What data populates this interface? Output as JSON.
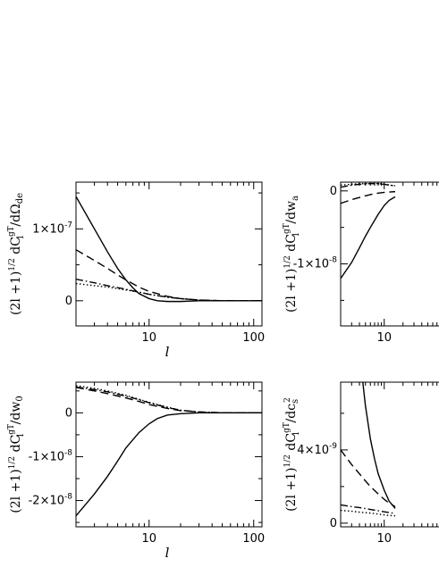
{
  "chart_data": [
    {
      "type": "line",
      "panel": "top-left",
      "title": "",
      "xlabel": "l",
      "ylabel": {
        "prefix": "(2l +1)",
        "prefix_sup": "1/2",
        "mid": " dC",
        "mid_sup": "gT",
        "mid_sub": "l",
        "suffix": " /dΩ",
        "suffix_sub": "de"
      },
      "xscale": "log",
      "xlim": [
        2,
        120
      ],
      "ylim": [
        -3.5e-08,
        1.65e-07
      ],
      "xticks": [
        {
          "v": 10,
          "label": "10"
        },
        {
          "v": 100,
          "label": "100"
        }
      ],
      "yticks": [
        {
          "v": 0,
          "label": "0"
        },
        {
          "v": 1e-07,
          "label": "1×10",
          "exp": "-7"
        }
      ],
      "series": [
        {
          "style": "solid",
          "x": [
            2,
            3,
            4,
            5,
            6,
            7,
            8,
            10,
            12,
            15,
            20,
            30,
            50,
            120
          ],
          "y": [
            1.45e-07,
            1e-07,
            6.8e-08,
            4.5e-08,
            2.9e-08,
            1.8e-08,
            1e-08,
            3e-09,
            0,
            -1e-09,
            -1e-09,
            0,
            0,
            0
          ]
        },
        {
          "style": "dashed",
          "x": [
            2,
            3,
            4,
            5,
            6,
            8,
            10,
            15,
            20,
            30,
            50,
            120
          ],
          "y": [
            7.1e-08,
            5.6e-08,
            4.5e-08,
            3.6e-08,
            2.9e-08,
            1.9e-08,
            1.3e-08,
            6e-09,
            3e-09,
            1e-09,
            0,
            0
          ]
        },
        {
          "style": "dashdot",
          "x": [
            2,
            3,
            4,
            6,
            8,
            10,
            15,
            20,
            30,
            50,
            120
          ],
          "y": [
            3e-08,
            2.5e-08,
            2.1e-08,
            1.6e-08,
            1.2e-08,
            9e-09,
            5e-09,
            3e-09,
            1e-09,
            0,
            0
          ]
        },
        {
          "style": "dotted",
          "x": [
            2,
            3,
            4,
            6,
            8,
            10,
            15,
            20,
            30,
            50,
            120
          ],
          "y": [
            2.4e-08,
            2.1e-08,
            1.9e-08,
            1.5e-08,
            1.2e-08,
            9e-09,
            5e-09,
            3e-09,
            1e-09,
            0,
            0
          ]
        }
      ]
    },
    {
      "type": "line",
      "panel": "top-right",
      "title": "",
      "xlabel": "",
      "ylabel": {
        "prefix": "(2l +1)",
        "prefix_sup": "1/2",
        "mid": " dC",
        "mid_sup": "gT",
        "mid_sub": "l",
        "suffix": " /dw",
        "suffix_sub": "a"
      },
      "xscale": "log",
      "xlim": [
        2,
        120
      ],
      "ylim": [
        -1.85e-08,
        1.2e-09
      ],
      "xticks": [
        {
          "v": 10,
          "label": "10"
        }
      ],
      "yticks": [
        {
          "v": 0,
          "label": "0"
        },
        {
          "v": -1e-08,
          "label": "-1×10",
          "exp": "-8"
        }
      ],
      "series": [
        {
          "style": "solid",
          "x": [
            2,
            3,
            4,
            5,
            6,
            8,
            10,
            12,
            15
          ],
          "y": [
            -1.2e-08,
            -9.8e-09,
            -7.8e-09,
            -6.2e-09,
            -5e-09,
            -3.2e-09,
            -2e-09,
            -1.3e-09,
            -8e-10
          ]
        },
        {
          "style": "dashed",
          "x": [
            2,
            3,
            4,
            6,
            8,
            10,
            12,
            15
          ],
          "y": [
            -1.7e-09,
            -1.2e-09,
            -9e-10,
            -5e-10,
            -3e-10,
            -2e-10,
            -1.5e-10,
            -1e-10
          ]
        },
        {
          "style": "dashdot",
          "x": [
            2,
            3,
            4,
            6,
            8,
            10,
            12,
            15
          ],
          "y": [
            5e-10,
            8e-10,
            9e-10,
            1e-09,
            1e-09,
            9e-10,
            8e-10,
            7e-10
          ]
        },
        {
          "style": "dotted",
          "x": [
            2,
            3,
            4,
            6,
            8,
            10,
            12,
            15
          ],
          "y": [
            8e-10,
            9e-10,
            1e-09,
            1e-09,
            1e-09,
            9e-10,
            8e-10,
            7e-10
          ]
        }
      ]
    },
    {
      "type": "line",
      "panel": "bottom-left",
      "title": "",
      "xlabel": "l",
      "ylabel": {
        "prefix": "(2l +1)",
        "prefix_sup": "1/2",
        "mid": " dC",
        "mid_sup": "gT",
        "mid_sub": "l",
        "suffix": " /dw",
        "suffix_sub": "0"
      },
      "xscale": "log",
      "xlim": [
        2,
        120
      ],
      "ylim": [
        -2.6e-08,
        7e-09
      ],
      "xticks": [
        {
          "v": 10,
          "label": "10"
        },
        {
          "v": 100,
          "label": "100"
        }
      ],
      "yticks": [
        {
          "v": 0,
          "label": "0"
        },
        {
          "v": -1e-08,
          "label": "-1×10",
          "exp": "-8"
        },
        {
          "v": -2e-08,
          "label": "-2×10",
          "exp": "-8"
        }
      ],
      "series": [
        {
          "style": "solid",
          "x": [
            2,
            3,
            4,
            5,
            6,
            8,
            10,
            12,
            15,
            20,
            30,
            50,
            120
          ],
          "y": [
            -2.35e-08,
            -1.85e-08,
            -1.45e-08,
            -1.1e-08,
            -8e-09,
            -4.5e-09,
            -2.5e-09,
            -1.3e-09,
            -5e-10,
            -2e-10,
            0,
            0,
            0
          ]
        },
        {
          "style": "dashed",
          "x": [
            2,
            3,
            4,
            6,
            8,
            10,
            15,
            20,
            30,
            50,
            120
          ],
          "y": [
            5.8e-09,
            5e-09,
            4.4e-09,
            3.4e-09,
            2.6e-09,
            1.9e-09,
            1e-09,
            5e-10,
            2e-10,
            0,
            0
          ]
        },
        {
          "style": "dashdot",
          "x": [
            2,
            3,
            4,
            6,
            8,
            10,
            15,
            20,
            30,
            50,
            120
          ],
          "y": [
            5.9e-09,
            5.3e-09,
            4.8e-09,
            3.8e-09,
            3e-09,
            2.3e-09,
            1.2e-09,
            6e-10,
            2e-10,
            0,
            0
          ]
        },
        {
          "style": "dotted",
          "x": [
            2,
            3,
            4,
            6,
            8,
            10,
            15,
            20,
            30,
            50,
            120
          ],
          "y": [
            6.2e-09,
            5.6e-09,
            5e-09,
            4e-09,
            3.1e-09,
            2.4e-09,
            1.3e-09,
            6e-10,
            2e-10,
            0,
            0
          ]
        }
      ]
    },
    {
      "type": "line",
      "panel": "bottom-right",
      "title": "",
      "xlabel": "",
      "ylabel": {
        "prefix": "(2l +1)",
        "prefix_sup": "1/2",
        "mid": " dC",
        "mid_sup": "gT",
        "mid_sub": "l",
        "suffix": " /dc",
        "suffix_sub": "s",
        "suffix_sup": "2"
      },
      "xscale": "log",
      "xlim": [
        2,
        120
      ],
      "ylim": [
        -2e-10,
        7.7e-09
      ],
      "xticks": [
        {
          "v": 10,
          "label": "10"
        }
      ],
      "yticks": [
        {
          "v": 0,
          "label": "0"
        },
        {
          "v": 4e-09,
          "label": "4×10",
          "exp": "-9"
        }
      ],
      "series": [
        {
          "style": "solid",
          "x": [
            4.5,
            5,
            6,
            7,
            8,
            10,
            12,
            15
          ],
          "y": [
            7.8e-09,
            6.4e-09,
            4.6e-09,
            3.5e-09,
            2.7e-09,
            1.8e-09,
            1.2e-09,
            8e-10
          ]
        },
        {
          "style": "dashed",
          "x": [
            2,
            3,
            4,
            5,
            6,
            8,
            10,
            12,
            15
          ],
          "y": [
            4e-09,
            3.2e-09,
            2.7e-09,
            2.3e-09,
            2e-09,
            1.6e-09,
            1.3e-09,
            1.1e-09,
            9e-10
          ]
        },
        {
          "style": "dashdot",
          "x": [
            2,
            3,
            4,
            6,
            8,
            10,
            12,
            15
          ],
          "y": [
            1e-09,
            9e-10,
            8.5e-10,
            7.5e-10,
            6.8e-10,
            6.2e-10,
            5.8e-10,
            5.3e-10
          ]
        },
        {
          "style": "dotted",
          "x": [
            2,
            3,
            4,
            6,
            8,
            10,
            12,
            15
          ],
          "y": [
            7e-10,
            6.5e-10,
            6e-10,
            5.5e-10,
            5e-10,
            4.5e-10,
            4.2e-10,
            4e-10
          ]
        }
      ]
    }
  ]
}
